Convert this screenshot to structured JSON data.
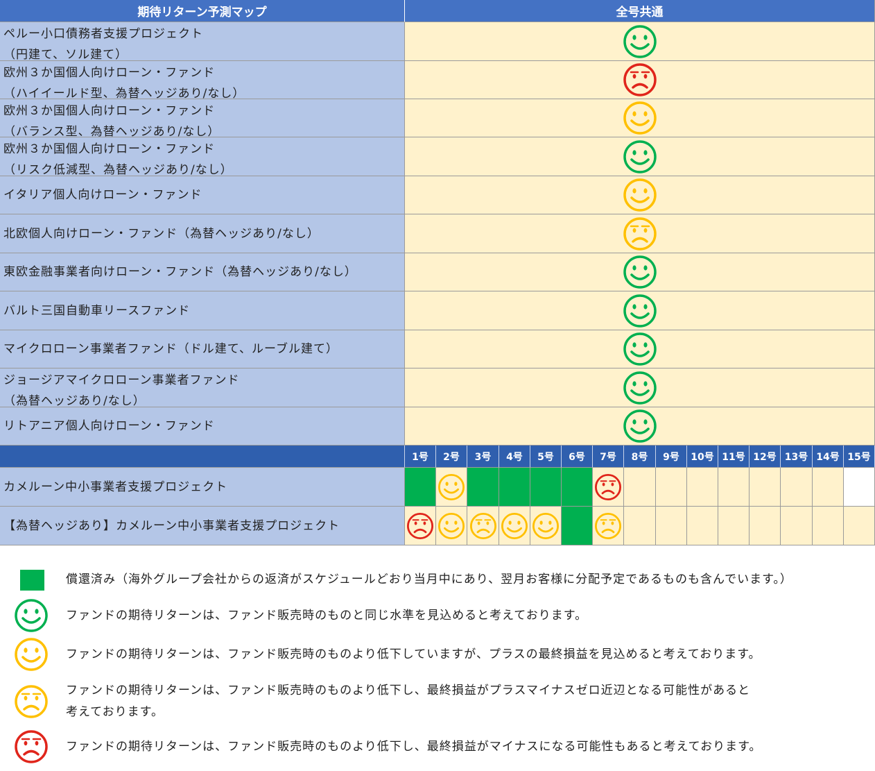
{
  "header": {
    "title": "期待リターン予測マップ",
    "common": "全号共通"
  },
  "colors": {
    "header_bg": "#4472c4",
    "label_bg": "#b4c6e7",
    "value_bg": "#fff2cc",
    "paid": "#00b050",
    "green_face": "#00b050",
    "yellow_face": "#ffc000",
    "red_face": "#e0251b"
  },
  "funds": [
    {
      "line1": "ペルー小口債務者支援プロジェクト",
      "line2": "（円建て、ソル建て）",
      "status": "green"
    },
    {
      "line1": "欧州３か国個人向けローン・ファンド",
      "line2": "（ハイイールド型、為替ヘッジあり/なし）",
      "status": "red"
    },
    {
      "line1": "欧州３か国個人向けローン・ファンド",
      "line2": "（バランス型、為替ヘッジあり/なし）",
      "status": "yellow"
    },
    {
      "line1": "欧州３か国個人向けローン・ファンド",
      "line2": "（リスク低減型、為替ヘッジあり/なし）",
      "status": "green"
    },
    {
      "line1": "イタリア個人向けローン・ファンド",
      "line2": "",
      "status": "yellow"
    },
    {
      "line1": "北欧個人向けローン・ファンド（為替ヘッジあり/なし）",
      "line2": "",
      "status": "yellow-worried"
    },
    {
      "line1": "東欧金融事業者向けローン・ファンド（為替ヘッジあり/なし）",
      "line2": "",
      "status": "green"
    },
    {
      "line1": "バルト三国自動車リースファンド",
      "line2": "",
      "status": "green"
    },
    {
      "line1": "マイクロローン事業者ファンド（ドル建て、ルーブル建て）",
      "line2": "",
      "status": "green"
    },
    {
      "line1": "ジョージアマイクロローン事業者ファンド",
      "line2": "（為替ヘッジあり/なし）",
      "status": "green"
    },
    {
      "line1": "リトアニア個人向けローン・ファンド",
      "line2": "",
      "status": "green"
    }
  ],
  "issue_numbers": [
    "1号",
    "2号",
    "3号",
    "4号",
    "5号",
    "6号",
    "7号",
    "8号",
    "9号",
    "10号",
    "11号",
    "12号",
    "13号",
    "14号",
    "15号"
  ],
  "cameroon": [
    {
      "label": "カメルーン中小事業者支援プロジェクト",
      "cells": [
        "paid",
        "yellow",
        "paid",
        "paid",
        "paid",
        "paid",
        "red",
        "empty",
        "empty",
        "empty",
        "empty",
        "empty",
        "empty",
        "empty",
        "blank"
      ]
    },
    {
      "label": "【為替ヘッジあり】カメルーン中小事業者支援プロジェクト",
      "cells": [
        "red",
        "yellow",
        "yellow-worried",
        "yellow",
        "yellow",
        "paid",
        "yellow-worried",
        "empty",
        "empty",
        "empty",
        "empty",
        "empty",
        "empty",
        "empty",
        "empty"
      ]
    }
  ],
  "legend": [
    {
      "icon": "paid-square",
      "line1": "償還済み（海外グループ会社からの返済がスケジュールどおり当月中にあり、翌月お客様に分配予定であるものも含んでいます。）",
      "line2": ""
    },
    {
      "icon": "green",
      "line1": "ファンドの期待リターンは、ファンド販売時のものと同じ水準を見込めると考えております。",
      "line2": ""
    },
    {
      "icon": "yellow",
      "line1": "ファンドの期待リターンは、ファンド販売時のものより低下していますが、プラスの最終損益を見込めると考えております。",
      "line2": ""
    },
    {
      "icon": "yellow-worried",
      "line1": "ファンドの期待リターンは、ファンド販売時のものより低下し、最終損益がプラスマイナスゼロ近辺となる可能性があると",
      "line2": "考えております。"
    },
    {
      "icon": "red",
      "line1": "ファンドの期待リターンは、ファンド販売時のものより低下し、最終損益がマイナスになる可能性もあると考えております。",
      "line2": ""
    }
  ]
}
